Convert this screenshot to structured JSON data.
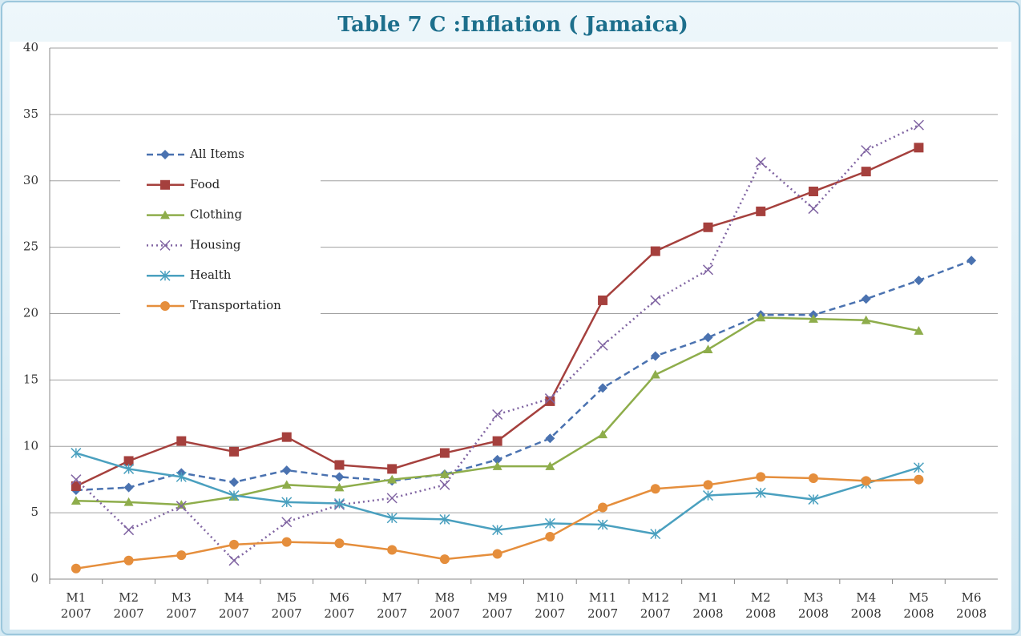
{
  "chart_data": {
    "type": "line",
    "title": "Table 7 C :Inflation ( Jamaica)",
    "categories": [
      "M1 2007",
      "M2 2007",
      "M3 2007",
      "M4 2007",
      "M5 2007",
      "M6 2007",
      "M7 2007",
      "M8 2007",
      "M9 2007",
      "M10 2007",
      "M11 2007",
      "M12 2007",
      "M1 2008",
      "M2 2008",
      "M3 2008",
      "M4 2008",
      "M5 2008",
      "M6 2008"
    ],
    "series": [
      {
        "name": "All Items",
        "color": "#4a72b0",
        "dash": "dashed",
        "marker": "diamond",
        "values": [
          6.7,
          6.9,
          8.0,
          7.3,
          8.2,
          7.7,
          7.4,
          7.9,
          9.0,
          10.6,
          14.4,
          16.8,
          18.2,
          19.9,
          19.9,
          21.1,
          22.5,
          24.0
        ]
      },
      {
        "name": "Food",
        "color": "#a5403d",
        "dash": "solid",
        "marker": "square",
        "values": [
          7.0,
          8.9,
          10.4,
          9.6,
          10.7,
          8.6,
          8.3,
          9.5,
          10.4,
          13.4,
          21.0,
          24.7,
          26.5,
          27.7,
          29.2,
          30.7,
          32.5,
          null
        ]
      },
      {
        "name": "Clothing",
        "color": "#8ead4b",
        "dash": "solid",
        "marker": "triangle",
        "values": [
          5.9,
          5.8,
          5.6,
          6.2,
          7.1,
          6.9,
          7.5,
          7.9,
          8.5,
          8.5,
          10.9,
          15.4,
          17.3,
          19.7,
          19.6,
          19.5,
          18.7,
          null
        ]
      },
      {
        "name": "Housing",
        "color": "#8064a2",
        "dash": "dotted",
        "marker": "x",
        "values": [
          7.5,
          3.7,
          5.5,
          1.4,
          4.3,
          5.6,
          6.1,
          7.1,
          12.4,
          13.6,
          17.6,
          21.0,
          23.3,
          31.4,
          27.9,
          32.3,
          34.2,
          null
        ]
      },
      {
        "name": "Health",
        "color": "#4aa0bf",
        "dash": "solid",
        "marker": "star",
        "values": [
          9.5,
          8.3,
          7.7,
          6.3,
          5.8,
          5.7,
          4.6,
          4.5,
          3.7,
          4.2,
          4.1,
          3.4,
          6.3,
          6.5,
          6.0,
          7.2,
          8.4,
          null
        ]
      },
      {
        "name": "Transportation",
        "color": "#e58e3c",
        "dash": "solid",
        "marker": "circle",
        "values": [
          0.8,
          1.4,
          1.8,
          2.6,
          2.8,
          2.7,
          2.2,
          1.5,
          1.9,
          3.2,
          5.4,
          6.8,
          7.1,
          7.7,
          7.6,
          7.4,
          7.5,
          null
        ]
      }
    ],
    "ylim": [
      0,
      40
    ],
    "yticks": [
      0,
      5,
      10,
      15,
      20,
      25,
      30,
      35,
      40
    ],
    "grid": true,
    "legend": "upper-left"
  }
}
